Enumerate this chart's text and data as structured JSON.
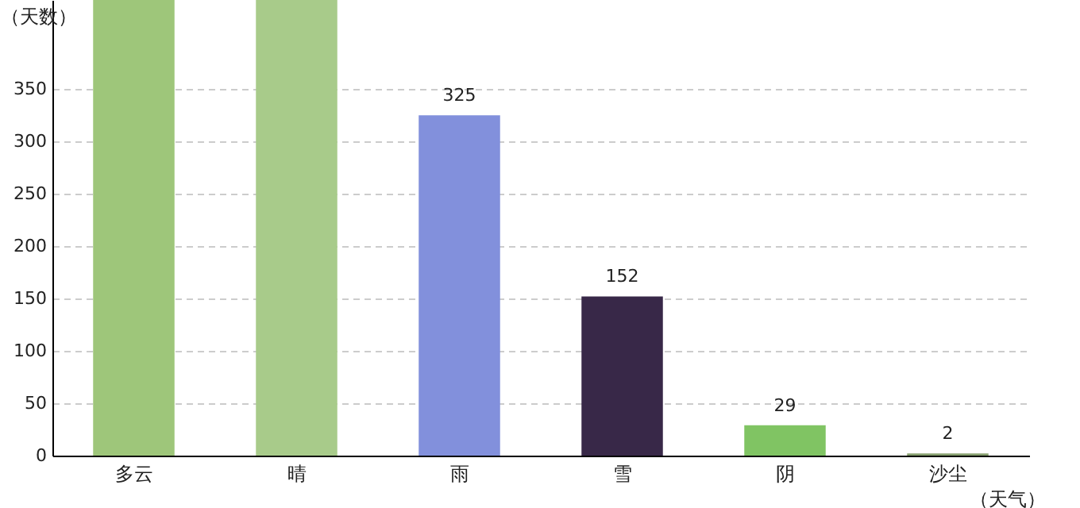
{
  "chart_data": {
    "type": "bar",
    "xlabel": "（天气）",
    "ylabel": "（天数）",
    "categories": [
      "多云",
      "晴",
      "雨",
      "雪",
      "阴",
      "沙尘"
    ],
    "values": [
      435,
      435,
      325,
      152,
      29,
      2
    ],
    "colors": [
      "#9ec67a",
      "#a8cb8a",
      "#8290dc",
      "#382848",
      "#80c463",
      "#88a070"
    ],
    "value_labels": [
      null,
      null,
      "325",
      "152",
      "29",
      "2"
    ],
    "ylim": [
      0,
      435
    ],
    "yticks": [
      0,
      50,
      100,
      150,
      200,
      250,
      300,
      350
    ],
    "grid": "y"
  }
}
